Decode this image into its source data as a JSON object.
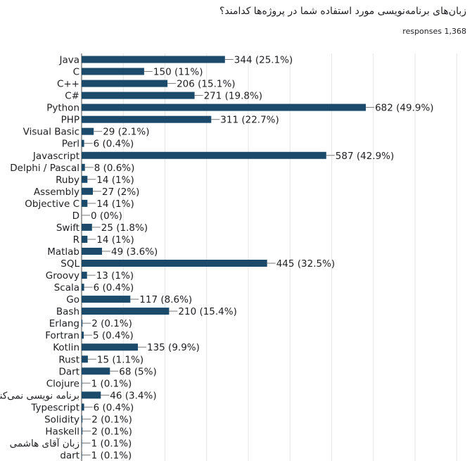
{
  "question": {
    "title": "زبان‌های برنامه‌نویسی مورد استفاده شما در پروژه‌ها کدامند؟",
    "responses": "1,368 responses"
  },
  "colors": {
    "bar": "#1b4a6b"
  },
  "chart_data": {
    "type": "bar",
    "orientation": "horizontal",
    "title": "",
    "grid": true,
    "xlim": [
      0,
      1000
    ],
    "categories": [
      "Java",
      "C",
      "C++",
      "C#",
      "Python",
      "PHP",
      "Visual Basic",
      "Perl",
      "Javascript",
      "Delphi / Pascal",
      "Ruby",
      "Assembly",
      "Objective C",
      "D",
      "Swift",
      "R",
      "Matlab",
      "SQL",
      "Groovy",
      "Scala",
      "Go",
      "Bash",
      "Erlang",
      "Fortran",
      "Kotlin",
      "Rust",
      "Dart",
      "Clojure",
      "برنامه نویسی نمی‌کنم",
      "Typescript",
      "Solidity",
      "Haskell",
      "زبان آقای هاشمی",
      "dart"
    ],
    "values": [
      344,
      150,
      206,
      271,
      682,
      311,
      29,
      6,
      587,
      8,
      14,
      27,
      14,
      0,
      25,
      14,
      49,
      445,
      13,
      6,
      117,
      210,
      2,
      5,
      135,
      15,
      68,
      1,
      46,
      6,
      2,
      2,
      1,
      1
    ],
    "value_labels": [
      "344 (25.1%)",
      "150 (11%)",
      "206 (15.1%)",
      "271 (19.8%)",
      "682 (49.9%)",
      "311 (22.7%)",
      "29 (2.1%)",
      "6 (0.4%)",
      "587 (42.9%)",
      "8 (0.6%)",
      "14 (1%)",
      "27 (2%)",
      "14 (1%)",
      "0 (0%)",
      "25 (1.8%)",
      "14 (1%)",
      "49 (3.6%)",
      "445 (32.5%)",
      "13 (1%)",
      "6 (0.4%)",
      "117 (8.6%)",
      "210 (15.4%)",
      "2 (0.1%)",
      "5 (0.4%)",
      "135 (9.9%)",
      "15 (1.1%)",
      "68 (5%)",
      "1 (0.1%)",
      "46 (3.4%)",
      "6 (0.4%)",
      "2 (0.1%)",
      "2 (0.1%)",
      "1 (0.1%)",
      "1 (0.1%)"
    ]
  }
}
